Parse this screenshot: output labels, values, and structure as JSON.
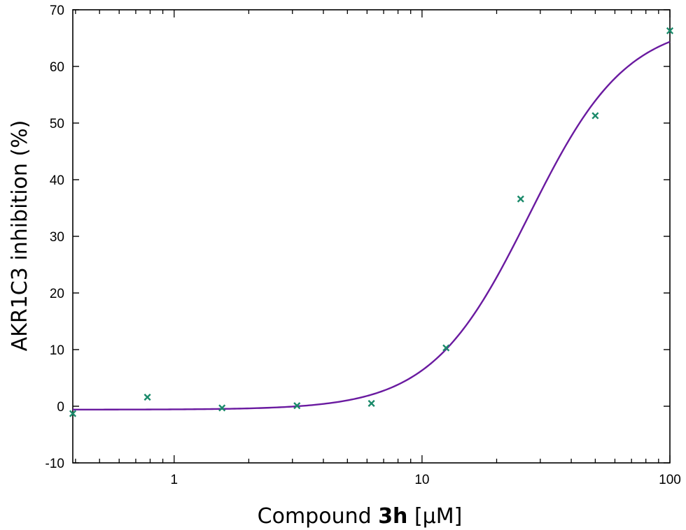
{
  "chart_data": {
    "type": "scatter",
    "x_scale": "log",
    "xlim": [
      0.39,
      100
    ],
    "ylim": [
      -10,
      70
    ],
    "grid": false,
    "xlabel_parts": [
      "Compound ",
      "3h",
      " [µM]"
    ],
    "ylabel": "AKR1C3 inhibition (%)",
    "x_ticks": [
      1,
      10,
      100
    ],
    "x_tick_labels": [
      "1",
      "10",
      "100"
    ],
    "y_ticks": [
      -10,
      0,
      10,
      20,
      30,
      40,
      50,
      60,
      70
    ],
    "y_tick_labels": [
      "-10",
      "0",
      "10",
      "20",
      "30",
      "40",
      "50",
      "60",
      "70"
    ],
    "points": [
      {
        "x": 0.39,
        "y": -1.3
      },
      {
        "x": 0.78,
        "y": 1.6
      },
      {
        "x": 1.56,
        "y": -0.3
      },
      {
        "x": 3.13,
        "y": 0.1
      },
      {
        "x": 6.25,
        "y": 0.5
      },
      {
        "x": 12.5,
        "y": 10.3
      },
      {
        "x": 25,
        "y": 36.6
      },
      {
        "x": 50,
        "y": 51.3
      },
      {
        "x": 100,
        "y": 66.3
      }
    ],
    "fit_curve": {
      "model": "logistic",
      "bottom": -0.6,
      "top": 68,
      "ec50": 27,
      "hill": 2.2
    },
    "colors": {
      "points": "#1a8a6a",
      "curve": "#6a1aa0",
      "axis": "#000000"
    }
  }
}
